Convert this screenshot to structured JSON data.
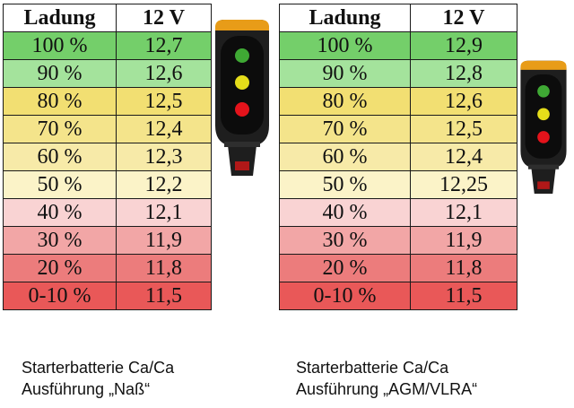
{
  "left_table": {
    "header": {
      "charge": "Ladung",
      "voltage": "12 V"
    },
    "rows": [
      {
        "charge": "100 %",
        "voltage": "12,7",
        "color": "#74cf6a"
      },
      {
        "charge": "90 %",
        "voltage": "12,6",
        "color": "#a4e39c"
      },
      {
        "charge": "80 %",
        "voltage": "12,5",
        "color": "#f2df72"
      },
      {
        "charge": "70 %",
        "voltage": "12,4",
        "color": "#f4e48b"
      },
      {
        "charge": "60 %",
        "voltage": "12,3",
        "color": "#f7eaa8"
      },
      {
        "charge": "50 %",
        "voltage": "12,2",
        "color": "#fbf3c8"
      },
      {
        "charge": "40 %",
        "voltage": "12,1",
        "color": "#f9d3d3"
      },
      {
        "charge": "30 %",
        "voltage": "11,9",
        "color": "#f2a6a6"
      },
      {
        "charge": "20 %",
        "voltage": "11,8",
        "color": "#ec7c7c"
      },
      {
        "charge": "0-10 %",
        "voltage": "11,5",
        "color": "#e95858"
      }
    ]
  },
  "right_table": {
    "header": {
      "charge": "Ladung",
      "voltage": "12 V"
    },
    "rows": [
      {
        "charge": "100 %",
        "voltage": "12,9",
        "color": "#74cf6a"
      },
      {
        "charge": "90 %",
        "voltage": "12,8",
        "color": "#a4e39c"
      },
      {
        "charge": "80 %",
        "voltage": "12,6",
        "color": "#f2df72"
      },
      {
        "charge": "70 %",
        "voltage": "12,5",
        "color": "#f4e48b"
      },
      {
        "charge": "60 %",
        "voltage": "12,4",
        "color": "#f7eaa8"
      },
      {
        "charge": "50 %",
        "voltage": "12,25",
        "color": "#fbf3c8"
      },
      {
        "charge": "40 %",
        "voltage": "12,1",
        "color": "#f9d3d3"
      },
      {
        "charge": "30 %",
        "voltage": "11,9",
        "color": "#f2a6a6"
      },
      {
        "charge": "20 %",
        "voltage": "11,8",
        "color": "#ec7c7c"
      },
      {
        "charge": "0-10 %",
        "voltage": "11,5",
        "color": "#e95858"
      }
    ]
  },
  "captions": {
    "left": {
      "line1": "Starterbatterie Ca/Ca",
      "line2": "Ausführung „Naß“"
    },
    "right": {
      "line1": "Starterbatterie Ca/Ca",
      "line2": "Ausführung „AGM/VLRA“"
    }
  },
  "indicator": {
    "icon": "battery-indicator-icon",
    "lamp_colors": [
      "#3fa934",
      "#e5dd1a",
      "#e4131b"
    ],
    "accent": "#f0a81e"
  }
}
